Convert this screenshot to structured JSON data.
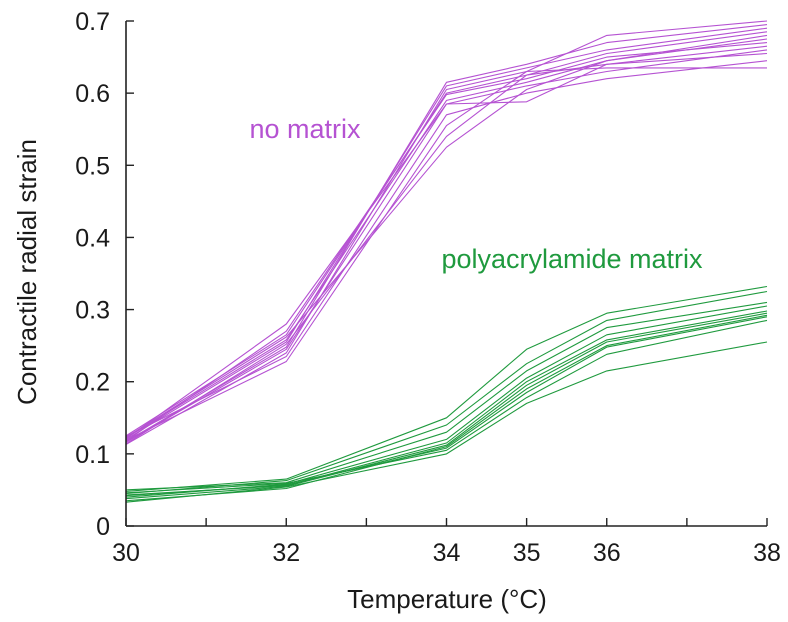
{
  "chart_data": {
    "type": "line",
    "xlabel": "Temperature (°C)",
    "ylabel": "Contractile radial strain",
    "xlim": [
      30,
      38
    ],
    "ylim": [
      0,
      0.7
    ],
    "x": [
      30,
      32,
      34,
      35,
      36,
      38
    ],
    "x_ticks": [
      30,
      32,
      34,
      35,
      36,
      38
    ],
    "x_tick_labels": [
      "30",
      "32",
      "34",
      "35",
      "36",
      "38"
    ],
    "x_minor_ticks": [
      31,
      33,
      37
    ],
    "y_ticks": [
      0,
      0.1,
      0.2,
      0.3,
      0.4,
      0.5,
      0.6,
      0.7
    ],
    "y_tick_labels": [
      "0",
      "0.1",
      "0.2",
      "0.3",
      "0.4",
      "0.5",
      "0.6",
      "0.7"
    ],
    "grid": false,
    "groups": [
      {
        "label": "no matrix",
        "color": "#b552d2",
        "series": [
          {
            "values": [
              0.117,
              0.248,
              0.615,
              0.64,
              0.67,
              0.695
            ]
          },
          {
            "values": [
              0.12,
              0.255,
              0.61,
              0.635,
              0.66,
              0.69
            ]
          },
          {
            "values": [
              0.113,
              0.24,
              0.605,
              0.63,
              0.68,
              0.7
            ]
          },
          {
            "values": [
              0.125,
              0.265,
              0.6,
              0.625,
              0.655,
              0.685
            ]
          },
          {
            "values": [
              0.118,
              0.27,
              0.598,
              0.62,
              0.65,
              0.67
            ]
          },
          {
            "values": [
              0.122,
              0.258,
              0.59,
              0.615,
              0.645,
              0.675
            ]
          },
          {
            "values": [
              0.116,
              0.245,
              0.585,
              0.588,
              0.64,
              0.665
            ]
          },
          {
            "values": [
              0.121,
              0.28,
              0.585,
              0.61,
              0.63,
              0.66
            ]
          },
          {
            "values": [
              0.124,
              0.235,
              0.57,
              0.6,
              0.62,
              0.645
            ]
          },
          {
            "values": [
              0.119,
              0.228,
              0.555,
              0.63,
              0.635,
              0.635
            ]
          },
          {
            "values": [
              0.114,
              0.252,
              0.54,
              0.625,
              0.64,
              0.655
            ]
          },
          {
            "values": [
              0.123,
              0.262,
              0.525,
              0.605,
              0.645,
              0.68
            ]
          }
        ]
      },
      {
        "label": "polyacrylamide matrix",
        "color": "#1f9a3e",
        "series": [
          {
            "values": [
              0.048,
              0.065,
              0.15,
              0.245,
              0.295,
              0.332
            ]
          },
          {
            "values": [
              0.045,
              0.063,
              0.14,
              0.225,
              0.285,
              0.325
            ]
          },
          {
            "values": [
              0.05,
              0.06,
              0.13,
              0.215,
              0.275,
              0.31
            ]
          },
          {
            "values": [
              0.04,
              0.058,
              0.12,
              0.205,
              0.265,
              0.305
            ]
          },
          {
            "values": [
              0.043,
              0.056,
              0.115,
              0.2,
              0.258,
              0.298
            ]
          },
          {
            "values": [
              0.038,
              0.055,
              0.112,
              0.195,
              0.255,
              0.295
            ]
          },
          {
            "values": [
              0.035,
              0.052,
              0.11,
              0.19,
              0.25,
              0.292
            ]
          },
          {
            "values": [
              0.042,
              0.057,
              0.108,
              0.185,
              0.248,
              0.29
            ]
          },
          {
            "values": [
              0.046,
              0.059,
              0.105,
              0.178,
              0.238,
              0.285
            ]
          },
          {
            "values": [
              0.033,
              0.054,
              0.1,
              0.17,
              0.215,
              0.255
            ]
          }
        ]
      }
    ]
  }
}
